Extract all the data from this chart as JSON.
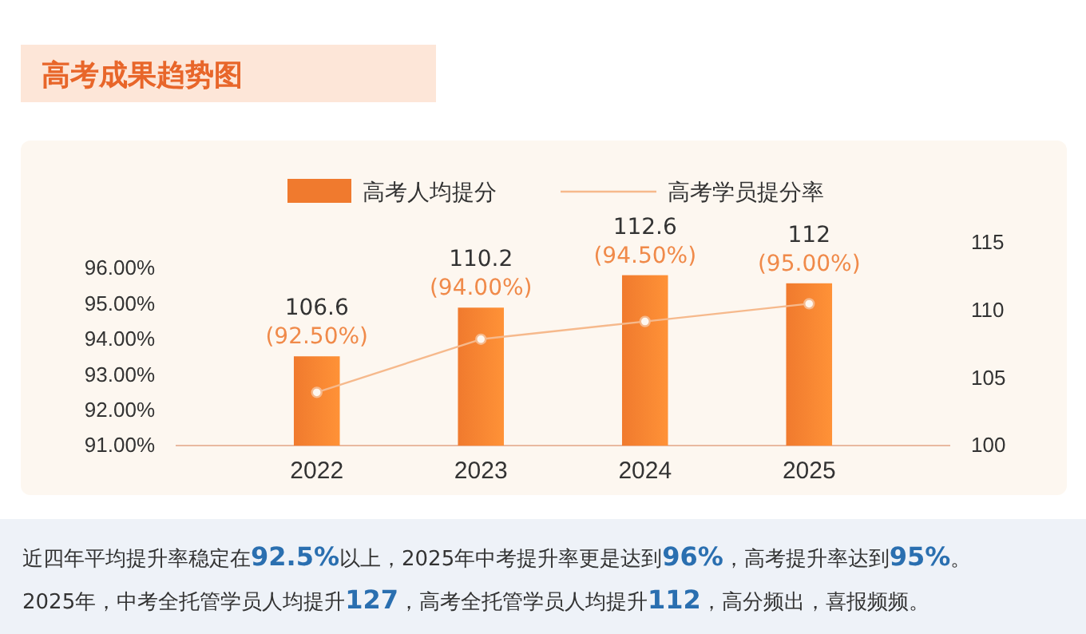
{
  "chart_data": {
    "type": "bar",
    "title": "高考成果趋势图",
    "categories": [
      "2022",
      "2023",
      "2024",
      "2025"
    ],
    "series": [
      {
        "name": "高考人均提分",
        "axis": "y2",
        "color": "#f07a2e",
        "values": [
          106.6,
          110.2,
          112.6,
          112
        ],
        "value_labels": [
          "106.6",
          "110.2",
          "112.6",
          "112"
        ]
      },
      {
        "name": "高考学员提分率",
        "type": "line",
        "axis": "y",
        "color": "#f6b98c",
        "values": [
          92.5,
          94,
          94.5,
          95
        ],
        "value_labels": [
          "(92.50%)",
          "(94.00%)",
          "(94.50%)",
          "(95.00%)"
        ]
      }
    ],
    "ylim": [
      91,
      96
    ],
    "yticks": [
      {
        "value": 91,
        "label": "91.00%"
      },
      {
        "value": 92,
        "label": "92.00%"
      },
      {
        "value": 93,
        "label": "93.00%"
      },
      {
        "value": 94,
        "label": "94.00%"
      },
      {
        "value": 95,
        "label": "95.00%"
      },
      {
        "value": 96,
        "label": "96.00%"
      }
    ],
    "y2lim": [
      100,
      115
    ],
    "y2ticks": [
      100,
      105,
      110,
      115
    ],
    "legend": "top",
    "marker": "circle",
    "line_style": "solid",
    "annotations": [
      "近四年平均提升率稳定在92.5%以上，2025年中考提升率更是达到96%，高考提升率达到95%。",
      "2025年，中考全托管学员人均提升127，高考全托管学员人均提升112，高分频出，喜报频频。"
    ]
  }
}
